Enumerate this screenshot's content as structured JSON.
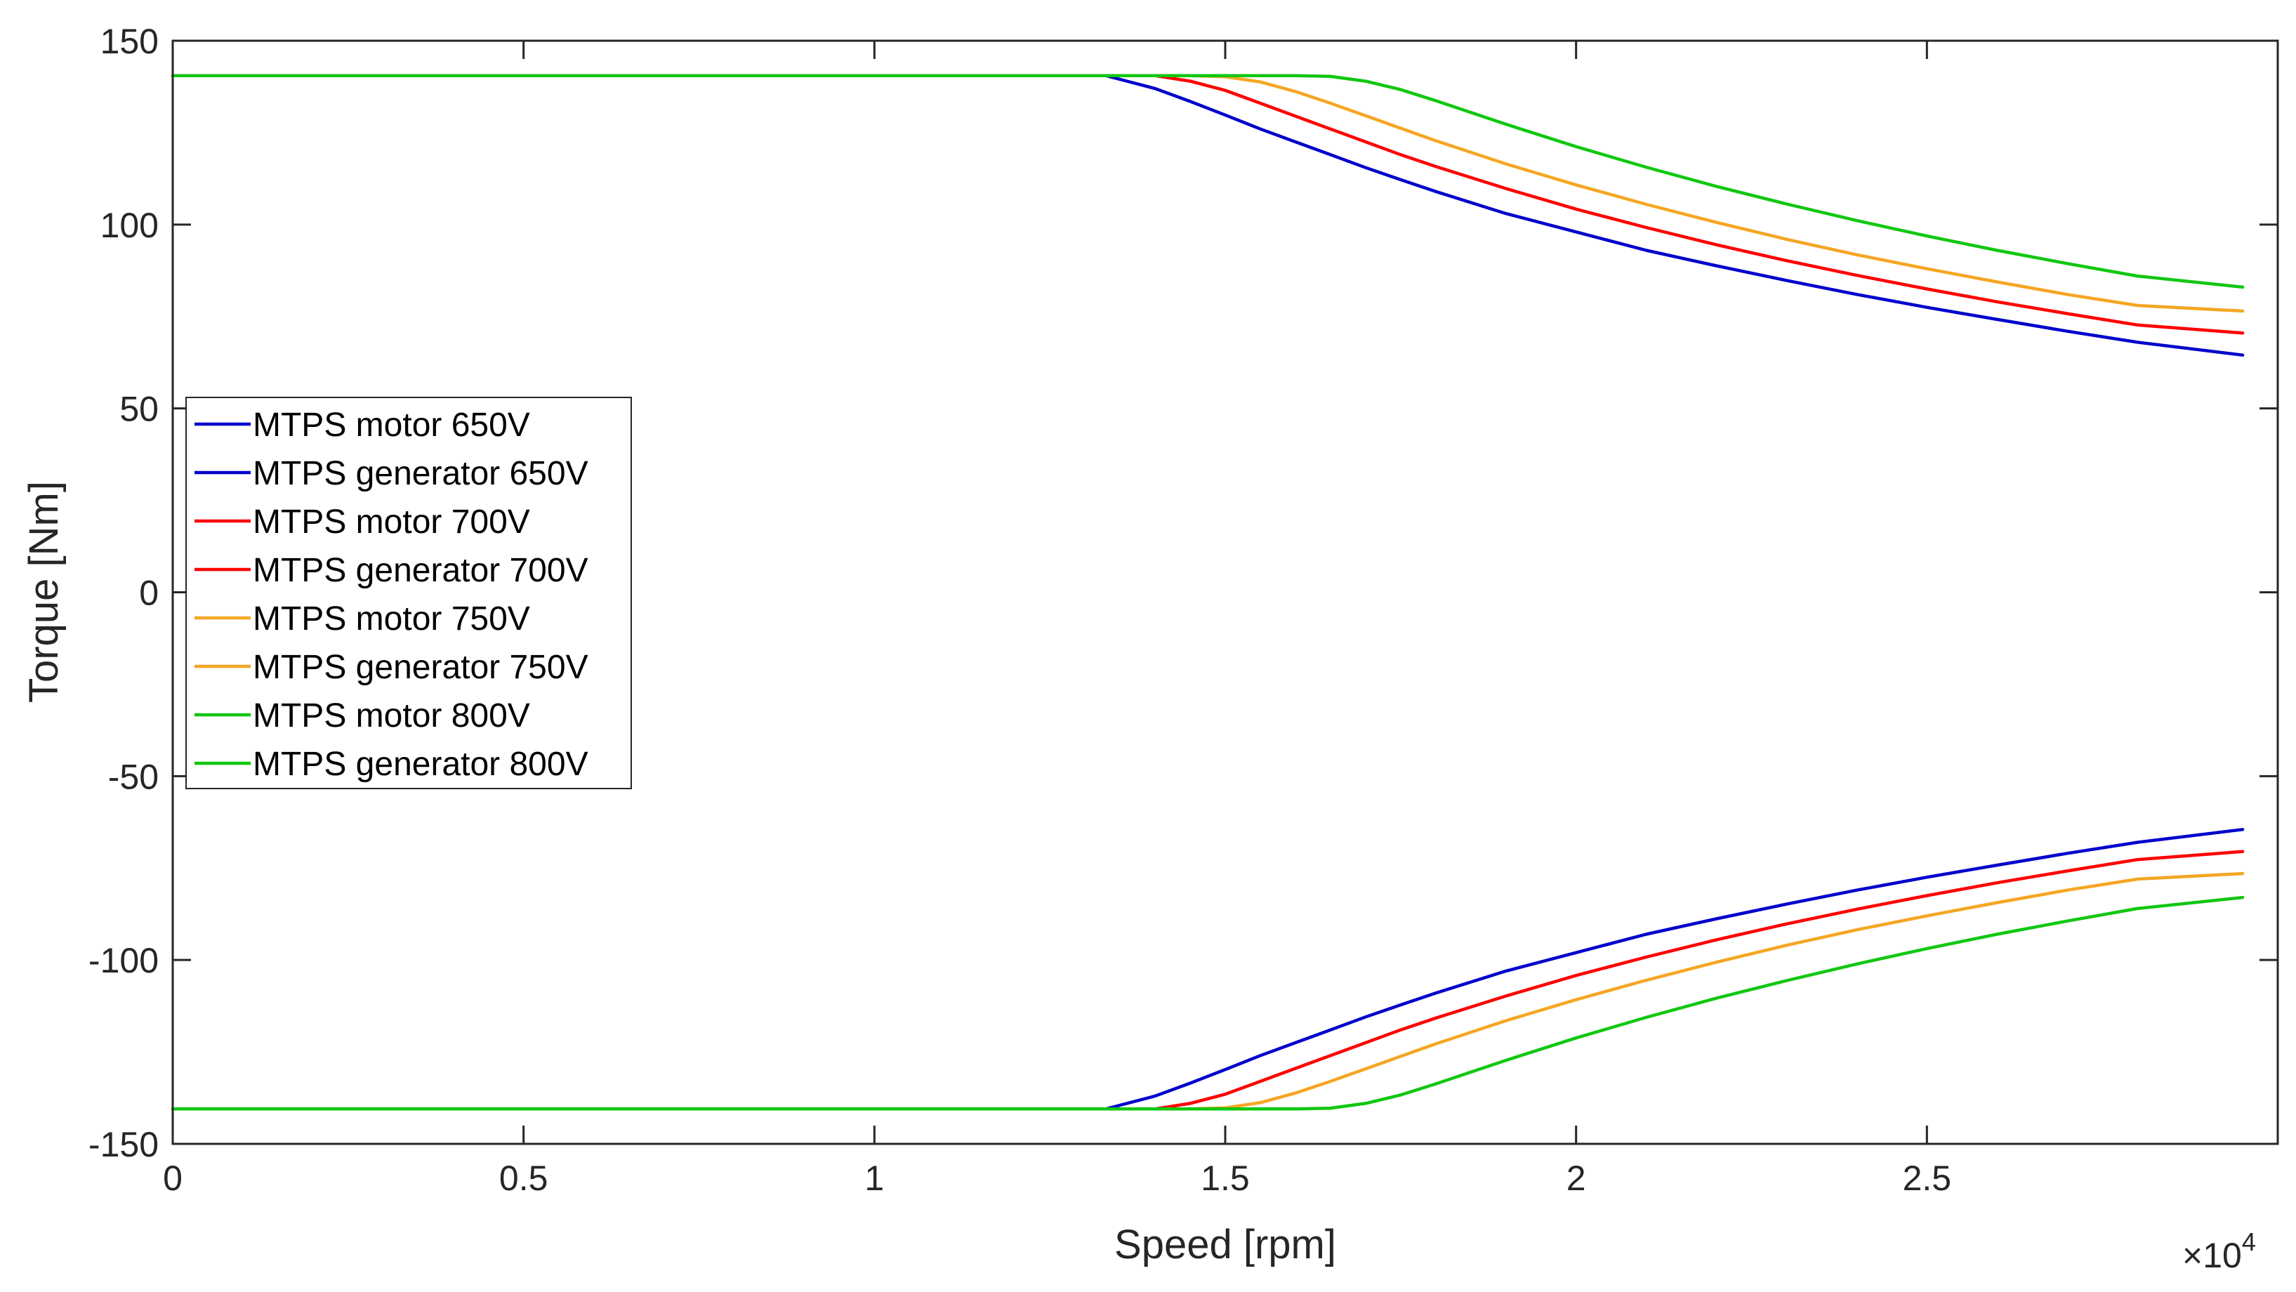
{
  "chart_data": {
    "type": "line",
    "title": "",
    "xlabel": "Speed [rpm]",
    "ylabel": "Torque [Nm]",
    "x_exponent_label": {
      "prefix": "×10",
      "power": "4"
    },
    "xlim": [
      0,
      30000
    ],
    "ylim": [
      -150,
      150
    ],
    "x_ticks": [
      0,
      5000,
      10000,
      15000,
      20000,
      25000
    ],
    "x_tick_labels": [
      "0",
      "0.5",
      "1",
      "1.5",
      "2",
      "2.5"
    ],
    "y_ticks": [
      150,
      100,
      50,
      0,
      -50,
      -100,
      -150
    ],
    "y_tick_labels": [
      "150",
      "100",
      "50",
      "0",
      "-50",
      "-100",
      "-150"
    ],
    "legend_position": "middle-left",
    "colors": {
      "650V": "#0000cc",
      "700V": "#ff0000",
      "750V": "#f5a623",
      "800V": "#11c711"
    },
    "x": [
      0,
      13000,
      13300,
      13500,
      14000,
      14500,
      15000,
      15500,
      16000,
      16500,
      17000,
      17500,
      18000,
      19000,
      20000,
      21000,
      22000,
      23000,
      24000,
      25000,
      26000,
      27000,
      28000,
      29500
    ],
    "series": [
      {
        "name": "MTPS motor 650V",
        "color": "#0000cc",
        "values": [
          140.5,
          140.5,
          140.5,
          139.5,
          137,
          133.5,
          129.8,
          126,
          122.5,
          119,
          115.5,
          112.2,
          109,
          103,
          98,
          93,
          88.8,
          84.8,
          81,
          77.5,
          74.2,
          71,
          68,
          64.5
        ]
      },
      {
        "name": "MTPS generator 650V",
        "color": "#0000cc",
        "values": [
          -140.5,
          -140.5,
          -140.5,
          -139.5,
          -137,
          -133.5,
          -129.8,
          -126,
          -122.5,
          -119,
          -115.5,
          -112.2,
          -109,
          -103,
          -98,
          -93,
          -88.8,
          -84.8,
          -81,
          -77.5,
          -74.2,
          -71,
          -68,
          -64.5
        ]
      },
      {
        "name": "MTPS motor 700V",
        "color": "#ff0000",
        "values": [
          140.5,
          140.5,
          140.5,
          140.5,
          140.5,
          139,
          136.5,
          133,
          129.5,
          126,
          122.5,
          119,
          115.8,
          109.8,
          104.2,
          99.2,
          94.5,
          90.2,
          86.2,
          82.5,
          79,
          75.8,
          72.7,
          70.5
        ]
      },
      {
        "name": "MTPS generator 700V",
        "color": "#ff0000",
        "values": [
          -140.5,
          -140.5,
          -140.5,
          -140.5,
          -140.5,
          -139,
          -136.5,
          -133,
          -129.5,
          -126,
          -122.5,
          -119,
          -115.8,
          -109.8,
          -104.2,
          -99.2,
          -94.5,
          -90.2,
          -86.2,
          -82.5,
          -79,
          -75.8,
          -72.7,
          -70.5
        ]
      },
      {
        "name": "MTPS motor 750V",
        "color": "#f5a623",
        "values": [
          140.5,
          140.5,
          140.5,
          140.5,
          140.5,
          140.5,
          140.2,
          138.8,
          136.2,
          133,
          129.6,
          126.2,
          122.8,
          116.5,
          110.8,
          105.5,
          100.6,
          96,
          91.8,
          88,
          84.4,
          81,
          78,
          76.5
        ]
      },
      {
        "name": "MTPS generator 750V",
        "color": "#f5a623",
        "values": [
          -140.5,
          -140.5,
          -140.5,
          -140.5,
          -140.5,
          -140.5,
          -140.2,
          -138.8,
          -136.2,
          -133,
          -129.6,
          -126.2,
          -122.8,
          -116.5,
          -110.8,
          -105.5,
          -100.6,
          -96,
          -91.8,
          -88,
          -84.4,
          -81,
          -78,
          -76.5
        ]
      },
      {
        "name": "MTPS motor 800V",
        "color": "#11c711",
        "values": [
          140.5,
          140.5,
          140.5,
          140.5,
          140.5,
          140.5,
          140.5,
          140.5,
          140.5,
          140.3,
          139,
          136.7,
          133.7,
          127.3,
          121.2,
          115.6,
          110.4,
          105.6,
          101.1,
          96.9,
          93,
          89.4,
          86,
          83
        ]
      },
      {
        "name": "MTPS generator 800V",
        "color": "#11c711",
        "values": [
          -140.5,
          -140.5,
          -140.5,
          -140.5,
          -140.5,
          -140.5,
          -140.5,
          -140.5,
          -140.5,
          -140.3,
          -139,
          -136.7,
          -133.7,
          -127.3,
          -121.2,
          -115.6,
          -110.4,
          -105.6,
          -101.1,
          -96.9,
          -93,
          -89.4,
          -86,
          -83
        ]
      }
    ]
  }
}
